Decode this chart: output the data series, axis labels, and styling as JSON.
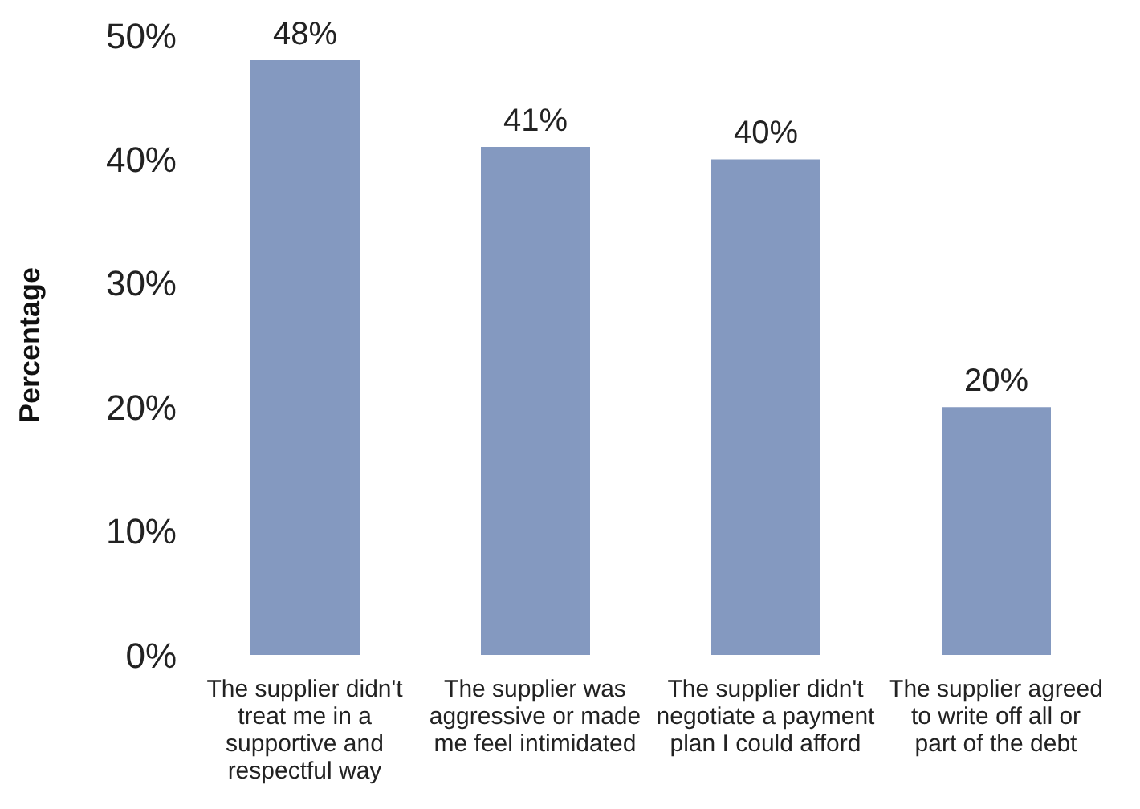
{
  "chart_data": {
    "type": "bar",
    "ylabel": "Percentage",
    "categories": [
      "The supplier didn't treat me in a supportive and respectful way",
      "The supplier was aggressive or made me feel intimidated",
      "The supplier didn't negotiate a payment plan I could afford",
      "The supplier agreed to write off all or part of the debt"
    ],
    "values": [
      48,
      41,
      40,
      20
    ],
    "color": "#8499c0",
    "value_labels": [
      "48%",
      "41%",
      "40%",
      "20%"
    ],
    "ylim": [
      0,
      50
    ],
    "yticks": [
      {
        "value": 0,
        "label": "0%"
      },
      {
        "value": 10,
        "label": "10%"
      },
      {
        "value": 20,
        "label": "20%"
      },
      {
        "value": 30,
        "label": "30%"
      },
      {
        "value": 40,
        "label": "40%"
      },
      {
        "value": 50,
        "label": "50%"
      }
    ],
    "grid": false,
    "legend": false
  }
}
